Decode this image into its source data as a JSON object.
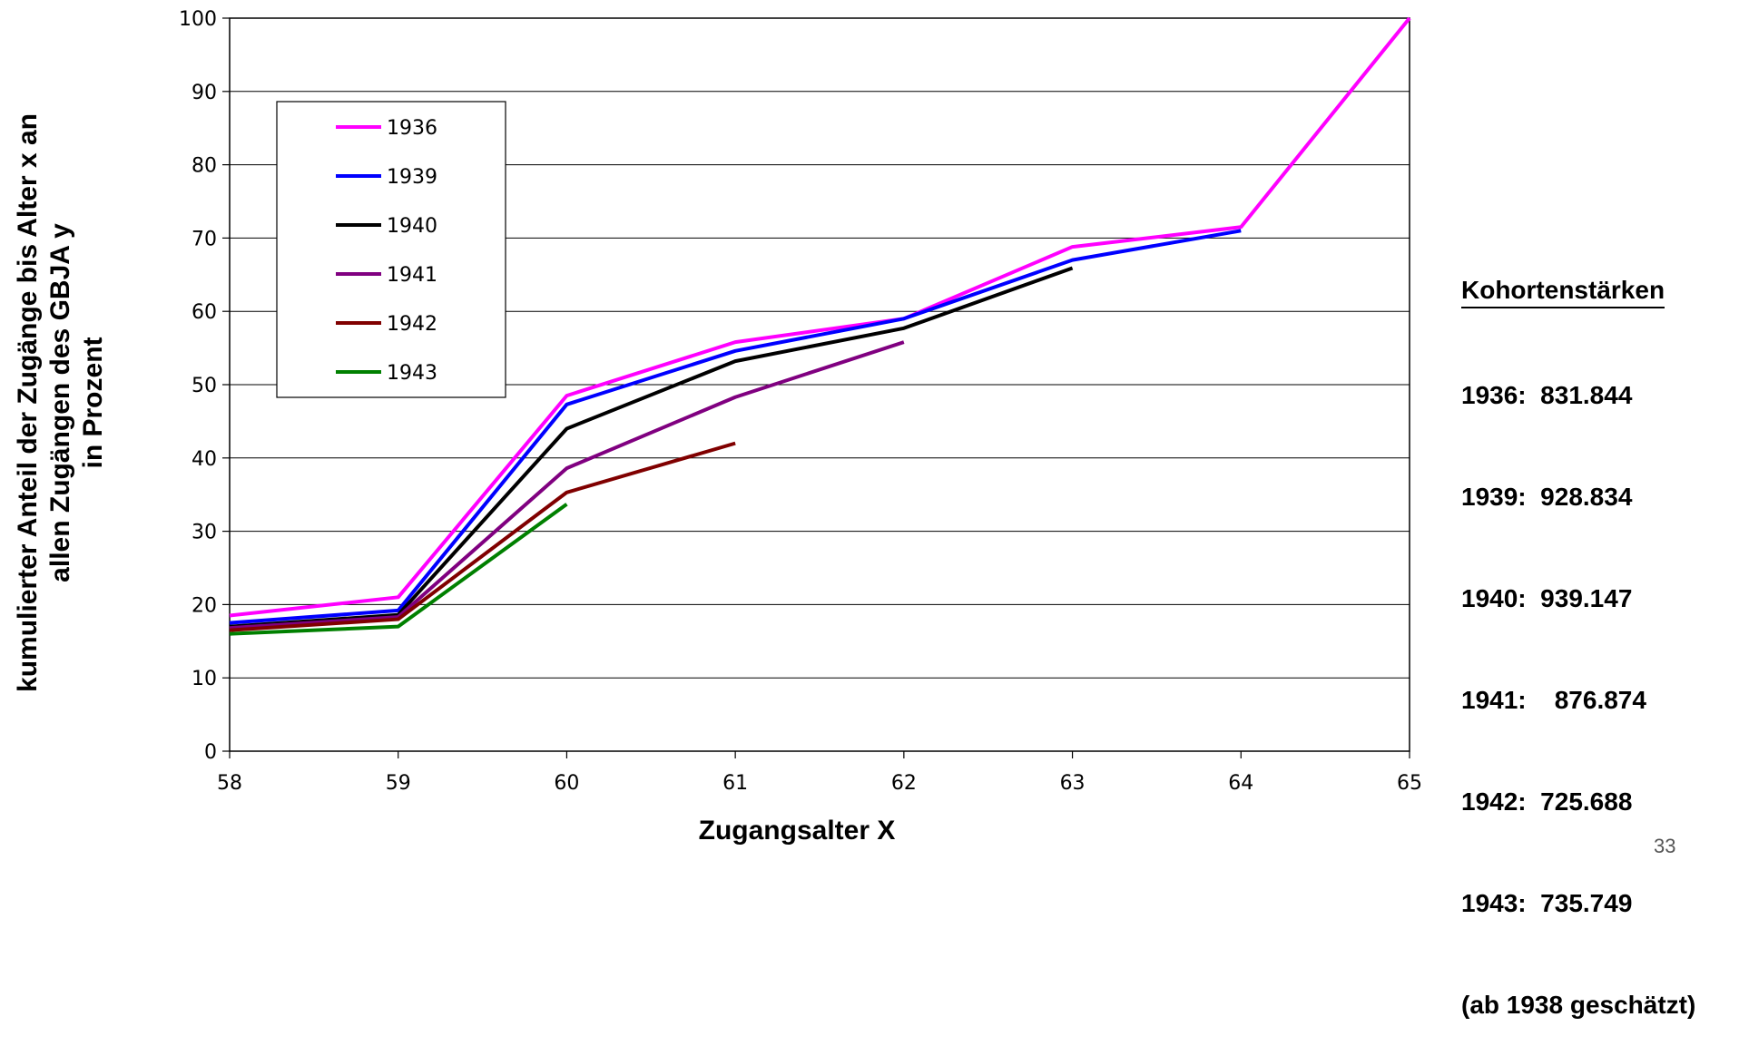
{
  "chart_data": {
    "type": "line",
    "xlabel": "Zugangsalter X",
    "ylabel": [
      "kumulierter Anteil der Zugänge bis Alter x an",
      "allen Zugängen des GBJA y",
      "in Prozent"
    ],
    "x": [
      58,
      59,
      60,
      61,
      62,
      63,
      64,
      65
    ],
    "x_ticks": [
      "58",
      "59",
      "60",
      "61",
      "62",
      "63",
      "64",
      "65"
    ],
    "y_ticks": [
      "0",
      "10",
      "20",
      "30",
      "40",
      "50",
      "60",
      "70",
      "80",
      "90",
      "100"
    ],
    "xlim": [
      58,
      65
    ],
    "ylim": [
      0,
      100
    ],
    "grid": "horizontal",
    "legend_position": "top-left",
    "series": [
      {
        "name": "1936",
        "color": "#FF00FF",
        "values": [
          18.5,
          21.0,
          48.5,
          55.8,
          59.0,
          68.8,
          71.5,
          100
        ]
      },
      {
        "name": "1939",
        "color": "#0000FF",
        "values": [
          17.5,
          19.2,
          47.3,
          54.6,
          59.0,
          67.0,
          71.0,
          null
        ]
      },
      {
        "name": "1940",
        "color": "#000000",
        "values": [
          17.0,
          18.6,
          44.0,
          53.2,
          57.7,
          65.9,
          null,
          null
        ]
      },
      {
        "name": "1941",
        "color": "#800080",
        "values": [
          16.8,
          18.3,
          38.6,
          48.3,
          55.8,
          null,
          null,
          null
        ]
      },
      {
        "name": "1942",
        "color": "#800000",
        "values": [
          16.5,
          18.0,
          35.3,
          42.0,
          null,
          null,
          null,
          null
        ]
      },
      {
        "name": "1943",
        "color": "#008000",
        "values": [
          16.0,
          17.0,
          33.7,
          null,
          null,
          null,
          null,
          null
        ]
      }
    ]
  },
  "cohort_info": {
    "title": "Kohortenstärken",
    "lines": [
      "1936:  831.844",
      "1939:  928.834",
      "1940:  939.147",
      "1941:    876.874",
      "1942:  725.688",
      "1943:  735.749",
      "(ab 1938 geschätzt)"
    ]
  },
  "page_number": "33"
}
